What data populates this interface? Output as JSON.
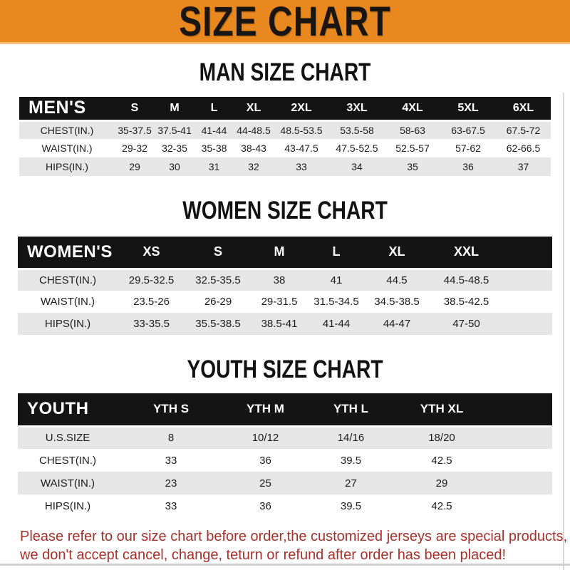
{
  "banner": {
    "title": "SIZE CHART",
    "bg_color": "#E9881E",
    "text_color": "#181512"
  },
  "colors": {
    "table_header_bar": "#141414",
    "row_stripe": "#E6E6E6",
    "row_plain": "#FFFFFF",
    "footer_text": "#A8302A"
  },
  "sections": [
    {
      "heading": "MAN SIZE CHART",
      "table": {
        "header_label": "MEN'S",
        "columns": [
          "S",
          "M",
          "L",
          "XL",
          "2XL",
          "3XL",
          "4XL",
          "5XL",
          "6XL"
        ],
        "rows": [
          {
            "label": "CHEST(IN.)",
            "values": [
              "35-37.5",
              "37.5-41",
              "41-44",
              "44-48.5",
              "48.5-53.5",
              "53.5-58",
              "58-63",
              "63-67.5",
              "67.5-72"
            ]
          },
          {
            "label": "WAIST(IN.)",
            "values": [
              "29-32",
              "32-35",
              "35-38",
              "38-43",
              "43-47.5",
              "47.5-52.5",
              "52.5-57",
              "57-62",
              "62-66.5"
            ]
          },
          {
            "label": "HIPS(IN.)",
            "values": [
              "29",
              "30",
              "31",
              "32",
              "33",
              "34",
              "35",
              "36",
              "37"
            ]
          }
        ]
      }
    },
    {
      "heading": "WOMEN SIZE CHART",
      "table": {
        "header_label": "WOMEN'S",
        "columns": [
          "XS",
          "S",
          "M",
          "L",
          "XL",
          "XXL"
        ],
        "rows": [
          {
            "label": "CHEST(IN.)",
            "values": [
              "29.5-32.5",
              "32.5-35.5",
              "38",
              "41",
              "44.5",
              "44.5-48.5"
            ]
          },
          {
            "label": "WAIST(IN.)",
            "values": [
              "23.5-26",
              "26-29",
              "29-31.5",
              "31.5-34.5",
              "34.5-38.5",
              "38.5-42.5"
            ]
          },
          {
            "label": "HIPS(IN.)",
            "values": [
              "33-35.5",
              "35.5-38.5",
              "38.5-41",
              "41-44",
              "44-47",
              "47-50"
            ]
          }
        ]
      }
    },
    {
      "heading": "YOUTH SIZE CHART",
      "table": {
        "header_label": "YOUTH",
        "columns": [
          "YTH S",
          "YTH M",
          "YTH L",
          "YTH XL"
        ],
        "rows": [
          {
            "label": "U.S.SIZE",
            "values": [
              "8",
              "10/12",
              "14/16",
              "18/20"
            ]
          },
          {
            "label": "CHEST(IN.)",
            "values": [
              "33",
              "36",
              "39.5",
              "42.5"
            ]
          },
          {
            "label": "WAIST(IN.)",
            "values": [
              "23",
              "25",
              "27",
              "29"
            ]
          },
          {
            "label": "HIPS(IN.)",
            "values": [
              "33",
              "36",
              "39.5",
              "42.5"
            ]
          }
        ]
      }
    }
  ],
  "footer": {
    "lines": [
      "Please refer to our size chart before order,the customized jerseys are special products,",
      "we don't accept cancel, change, teturn or refund after order has been placed!"
    ]
  }
}
